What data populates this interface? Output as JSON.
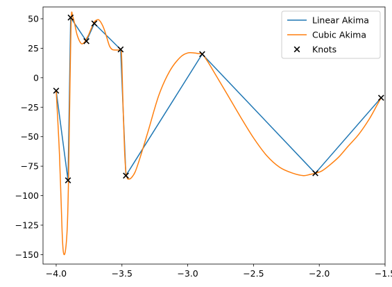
{
  "chart_data": {
    "type": "line",
    "title": "",
    "xlabel": "",
    "ylabel": "",
    "xlim": [
      -4.1,
      -1.5
    ],
    "ylim": [
      -158,
      60
    ],
    "xticks": [
      -4.0,
      -3.5,
      -3.0,
      -2.5,
      -2.0,
      -1.5
    ],
    "xtick_labels": [
      "−4.0",
      "−3.5",
      "−3.0",
      "−2.5",
      "−2.0",
      "−1.5"
    ],
    "yticks": [
      50,
      25,
      0,
      -25,
      -50,
      -75,
      -100,
      -125,
      -150
    ],
    "ytick_labels": [
      "50",
      "25",
      "0",
      "−25",
      "−50",
      "−75",
      "−100",
      "−125",
      "−150"
    ],
    "grid": false,
    "legend_position": "top-right",
    "colors": {
      "linear": "#1f77b4",
      "cubic": "#ff7f0e",
      "knots": "#000000"
    },
    "series": [
      {
        "name": "Linear Akima",
        "kind": "line",
        "x": [
          -4.0,
          -3.91,
          -3.89,
          -3.77,
          -3.71,
          -3.51,
          -3.47,
          -2.89,
          -2.03,
          -1.53
        ],
        "y": [
          -11,
          -87,
          51,
          31,
          46,
          24,
          -83,
          20,
          -81,
          -17
        ]
      },
      {
        "name": "Cubic Akima",
        "kind": "curve",
        "x": [
          -4.0,
          -3.975,
          -3.955,
          -3.945,
          -3.93,
          -3.915,
          -3.905,
          -3.895,
          -3.885,
          -3.875,
          -3.86,
          -3.84,
          -3.81,
          -3.785,
          -3.77,
          -3.755,
          -3.74,
          -3.72,
          -3.705,
          -3.69,
          -3.675,
          -3.655,
          -3.635,
          -3.615,
          -3.595,
          -3.575,
          -3.555,
          -3.535,
          -3.52,
          -3.51,
          -3.505,
          -3.5,
          -3.49,
          -3.48,
          -3.47,
          -3.46,
          -3.45,
          -3.43,
          -3.4,
          -3.36,
          -3.3,
          -3.22,
          -3.14,
          -3.06,
          -3.0,
          -2.95,
          -2.92,
          -2.89,
          -2.85,
          -2.78,
          -2.7,
          -2.6,
          -2.5,
          -2.4,
          -2.3,
          -2.2,
          -2.12,
          -2.07,
          -2.03,
          -1.98,
          -1.92,
          -1.85,
          -1.78,
          -1.7,
          -1.62,
          -1.56,
          -1.53
        ],
        "y": [
          -11,
          -65,
          -130,
          -148,
          -147,
          -125,
          -80,
          -5,
          51,
          52,
          46,
          36,
          29,
          30,
          33,
          36,
          40,
          45,
          48,
          49,
          49,
          46,
          41,
          34,
          27,
          24,
          23.5,
          23.5,
          23.5,
          24,
          23,
          10,
          -30,
          -62,
          -80,
          -85,
          -86,
          -85,
          -80,
          -67,
          -45,
          -15,
          5,
          17,
          21,
          21,
          20.5,
          20,
          14,
          1,
          -14,
          -33,
          -51,
          -66,
          -76,
          -81,
          -83,
          -82,
          -81,
          -79,
          -74,
          -67,
          -58,
          -48,
          -35,
          -23,
          -17
        ]
      },
      {
        "name": "Knots",
        "kind": "scatter",
        "marker": "x",
        "x": [
          -4.0,
          -3.91,
          -3.89,
          -3.77,
          -3.71,
          -3.51,
          -3.47,
          -2.89,
          -2.03,
          -1.53
        ],
        "y": [
          -11,
          -87,
          51,
          31,
          46,
          24,
          -83,
          20,
          -81,
          -17
        ]
      }
    ]
  }
}
